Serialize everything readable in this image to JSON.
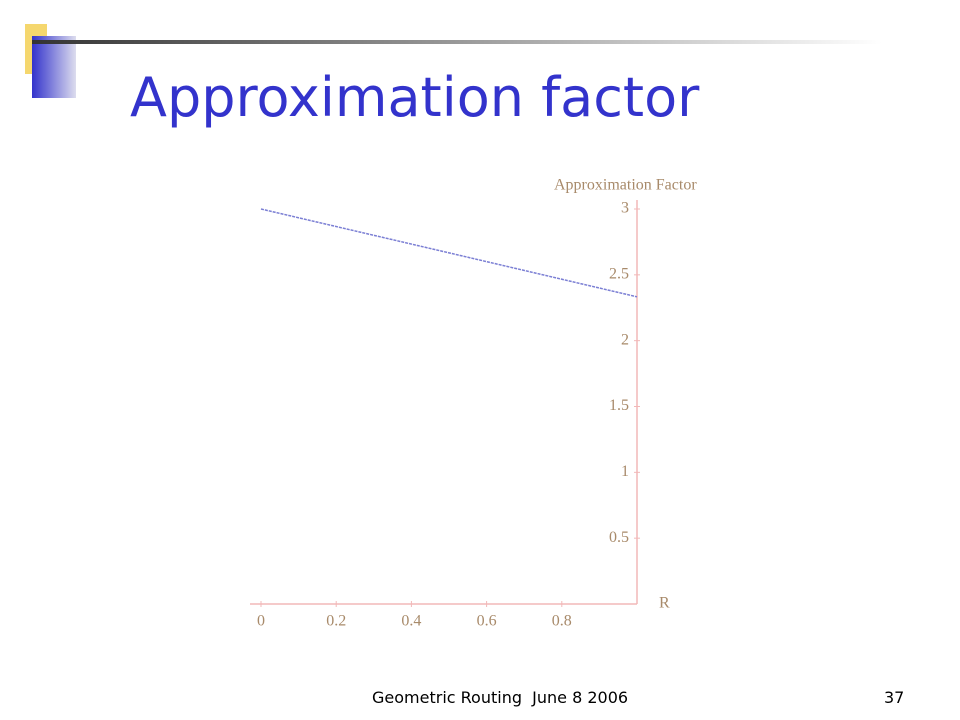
{
  "slide": {
    "title": "Approximation factor",
    "footer": "Geometric Routing  June 8 2006",
    "page_number": "37"
  },
  "chart_data": {
    "type": "line",
    "y_label": "Approximation Factor",
    "x_label": "R",
    "x": [
      0,
      0.5,
      1
    ],
    "series": [
      {
        "color": "#7b7fd4",
        "values": [
          3,
          2.667,
          2.333
        ]
      }
    ],
    "xlim": [
      0,
      1
    ],
    "ylim": [
      0,
      3
    ],
    "xticks": [
      0,
      0.2,
      0.4,
      0.6,
      0.8
    ],
    "yticks": [
      0.5,
      1,
      1.5,
      2,
      2.5,
      3
    ],
    "axis_color": "#f2b8b8",
    "label_color": "#a88a6a"
  }
}
